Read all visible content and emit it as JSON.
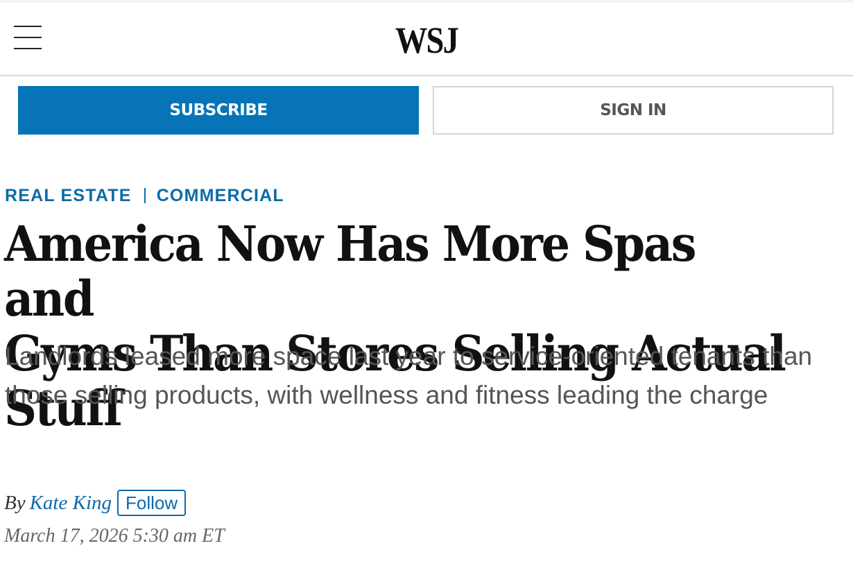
{
  "header": {
    "logo_text": "WSJ",
    "menu_icon": "hamburger-menu-icon"
  },
  "actions": {
    "subscribe_label": "SUBSCRIBE",
    "signin_label": "SIGN IN",
    "subscribe_color": "#0674b7"
  },
  "breadcrumb": {
    "section": "REAL ESTATE",
    "subsection": "COMMERCIAL",
    "color": "#0b6aa8"
  },
  "article": {
    "headline_line1": "America Now Has More Spas and",
    "headline_line2": "Gyms Than Stores Selling Actual Stuff",
    "dek": "Landlords leased more space last year to service-oriented tenants than those selling products, with wellness and fitness leading the charge",
    "byline_prefix": "By",
    "author": "Kate King",
    "follow_label": "Follow",
    "timestamp": "March 17, 2026 5:30 am ET"
  }
}
